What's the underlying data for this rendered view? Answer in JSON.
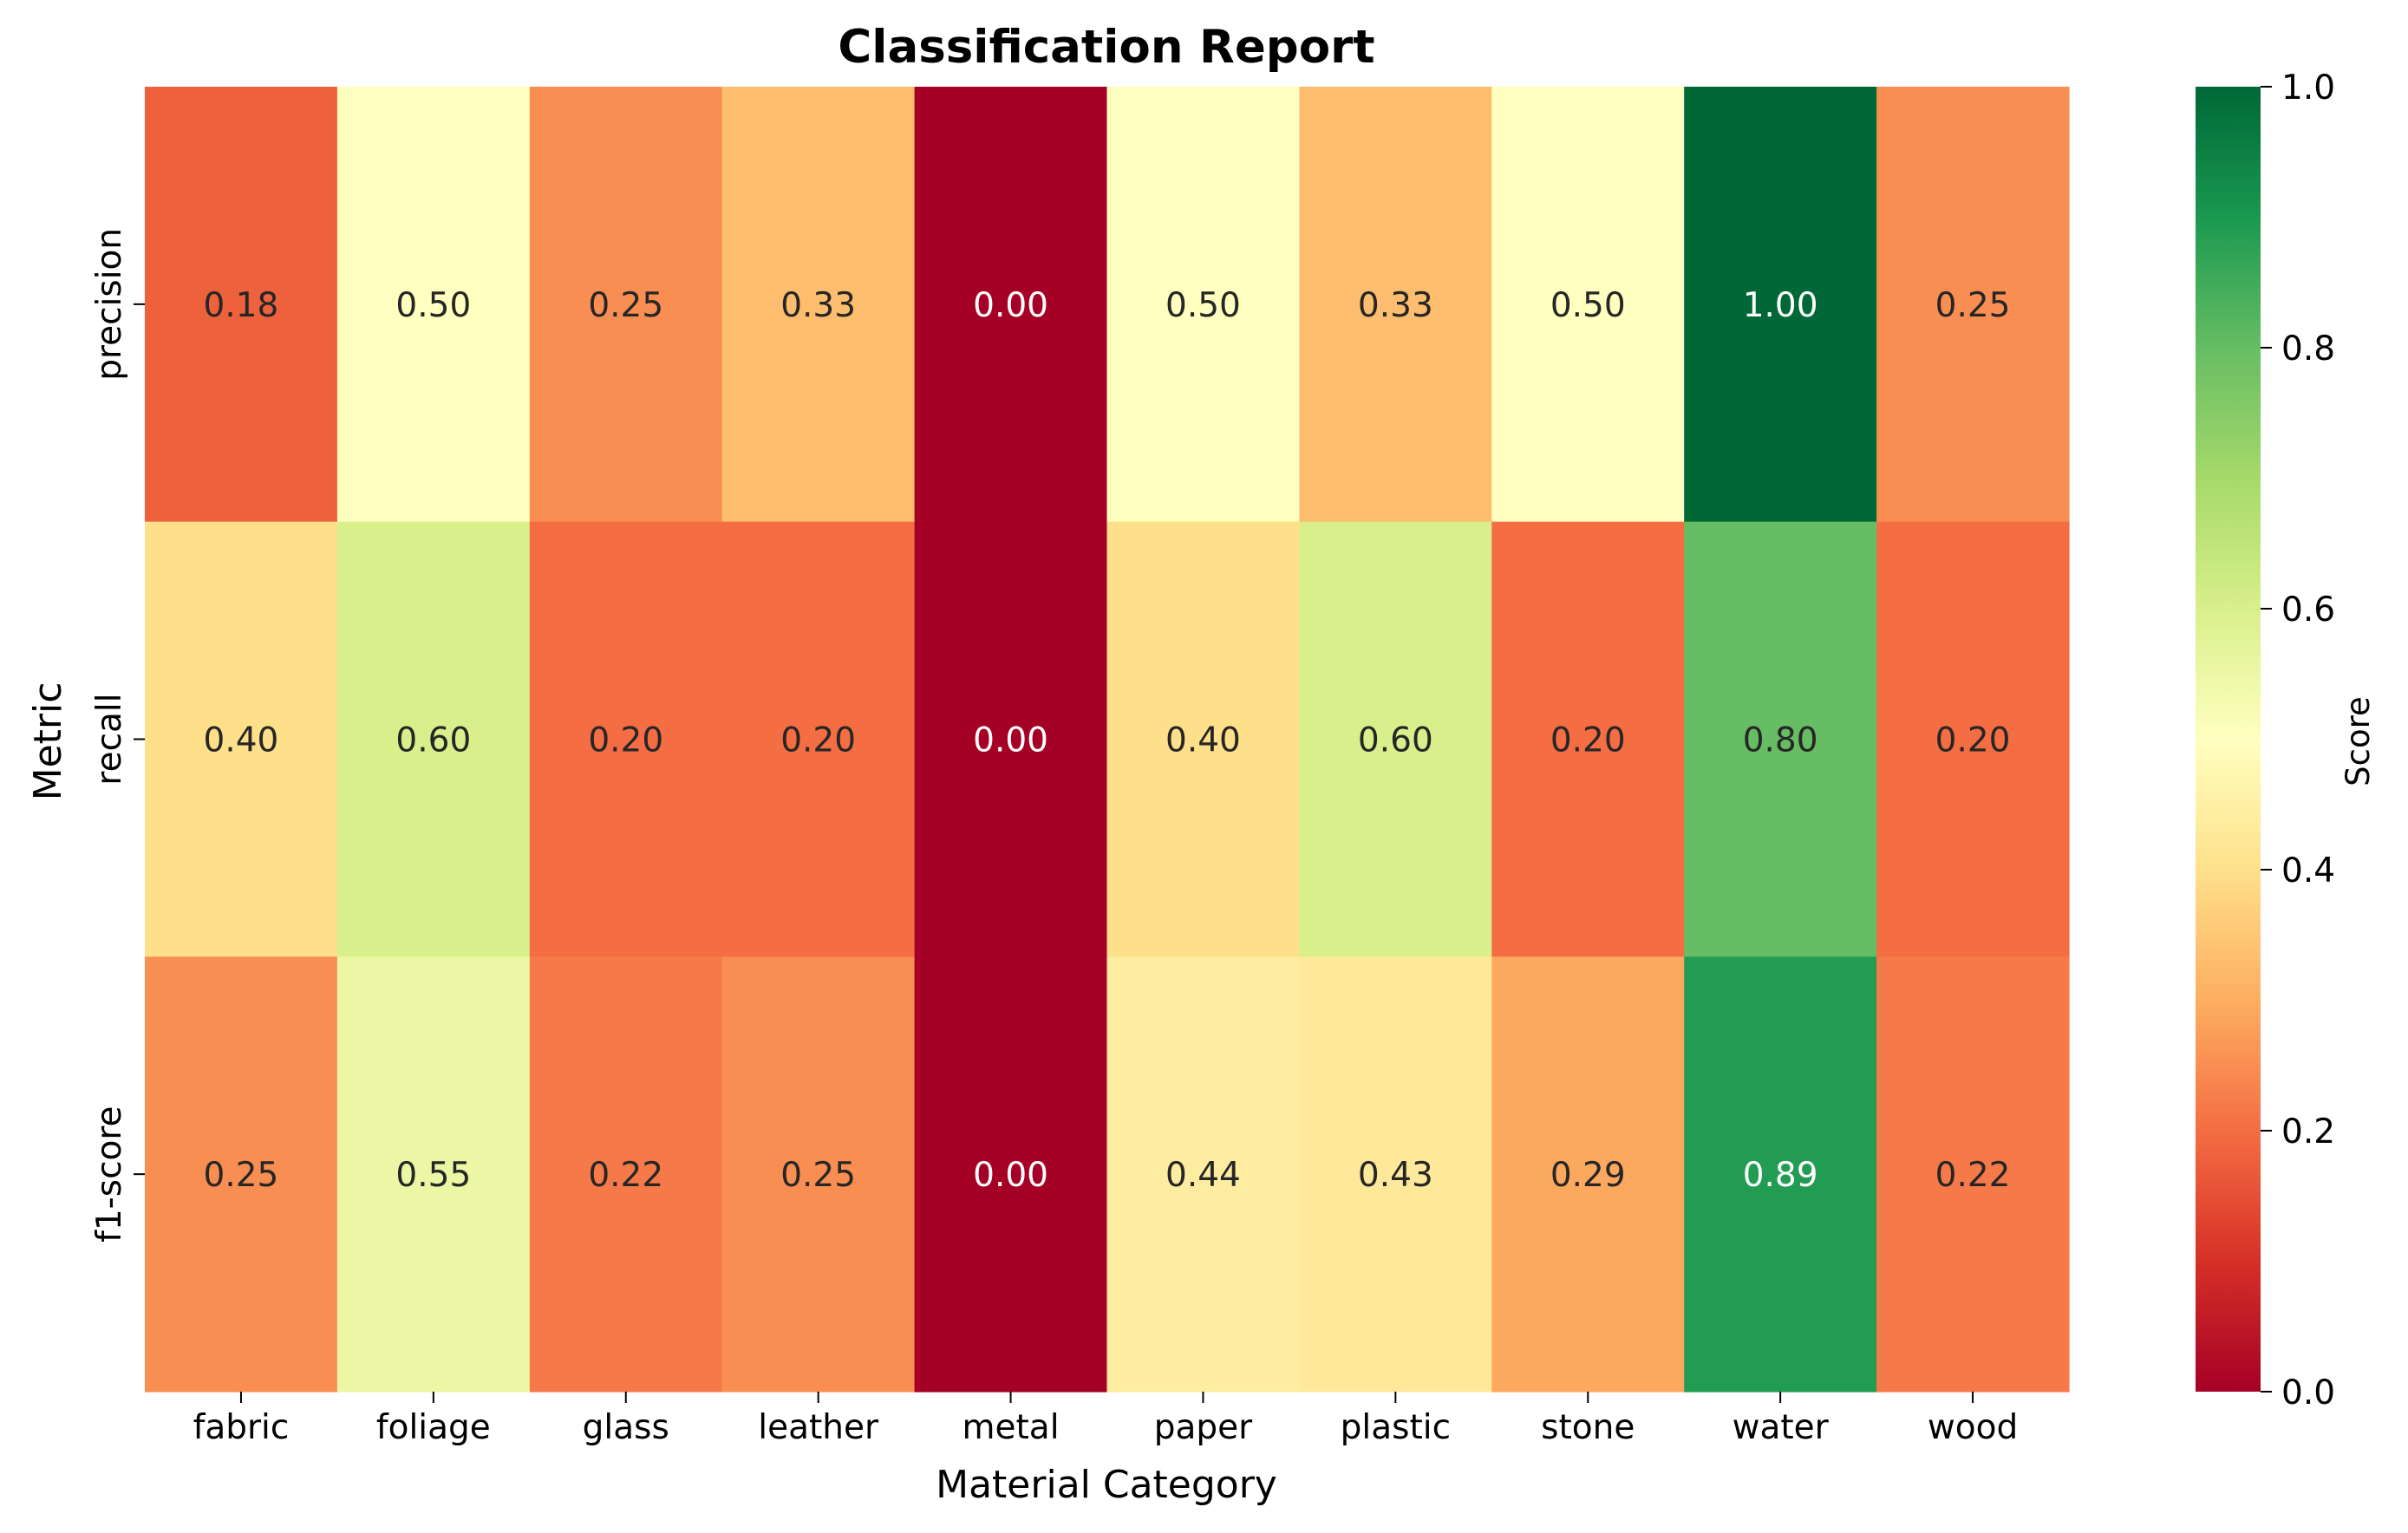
{
  "chart_data": {
    "type": "heatmap",
    "title": "Classification Report",
    "xlabel": "Material Category",
    "ylabel": "Metric",
    "x_categories": [
      "fabric",
      "foliage",
      "glass",
      "leather",
      "metal",
      "paper",
      "plastic",
      "stone",
      "water",
      "wood"
    ],
    "y_categories": [
      "precision",
      "recall",
      "f1-score"
    ],
    "values": [
      [
        0.18,
        0.5,
        0.25,
        0.33,
        0.0,
        0.5,
        0.33,
        0.5,
        1.0,
        0.25
      ],
      [
        0.4,
        0.6,
        0.2,
        0.2,
        0.0,
        0.4,
        0.6,
        0.2,
        0.8,
        0.2
      ],
      [
        0.25,
        0.55,
        0.22,
        0.25,
        0.0,
        0.44,
        0.43,
        0.29,
        0.89,
        0.22
      ]
    ],
    "cell_labels": [
      [
        "0.18",
        "0.50",
        "0.25",
        "0.33",
        "0.00",
        "0.50",
        "0.33",
        "0.50",
        "1.00",
        "0.25"
      ],
      [
        "0.40",
        "0.60",
        "0.20",
        "0.20",
        "0.00",
        "0.40",
        "0.60",
        "0.20",
        "0.80",
        "0.20"
      ],
      [
        "0.25",
        "0.55",
        "0.22",
        "0.25",
        "0.00",
        "0.44",
        "0.43",
        "0.29",
        "0.89",
        "0.22"
      ]
    ],
    "colorbar": {
      "label": "Score",
      "range": [
        0,
        1
      ],
      "ticks": [
        0.0,
        0.2,
        0.4,
        0.6,
        0.8,
        1.0
      ],
      "tick_labels": [
        "0.0",
        "0.2",
        "0.4",
        "0.6",
        "0.8",
        "1.0"
      ]
    },
    "colormap": "RdYlGn",
    "grid": false
  }
}
